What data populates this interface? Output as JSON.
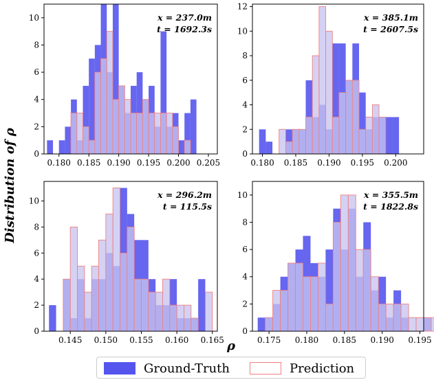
{
  "colors": {
    "ground_truth_fill": "#5555ee",
    "prediction_fill": "#c8c4f0",
    "prediction_edge": "#f08080"
  },
  "y_axis_label": "Distribution of ρ",
  "x_axis_label": "ρ",
  "legend": {
    "ground_truth": "Ground-Truth",
    "prediction": "Prediction"
  },
  "chart_data": [
    {
      "type": "bar",
      "panel": "top-left",
      "annotation_x": "x = 237.0m",
      "annotation_t": "t = 1692.3s",
      "xlim": [
        0.1775,
        0.2065
      ],
      "ylim": [
        0,
        11
      ],
      "xticks": [
        0.18,
        0.185,
        0.19,
        0.195,
        0.2,
        0.205
      ],
      "xtick_labels": [
        "0.180",
        "0.185",
        "0.190",
        "0.195",
        "0.200",
        "0.205"
      ],
      "yticks": [
        0,
        2,
        4,
        6,
        8,
        10
      ],
      "bin_start": 0.178,
      "bin_width": 0.001,
      "series": [
        {
          "name": "Ground-Truth",
          "values": [
            1,
            0,
            1,
            2,
            4,
            1,
            5,
            7,
            8,
            11,
            6,
            11,
            5,
            3,
            5,
            6,
            4,
            5,
            2,
            9,
            2,
            3,
            1,
            3,
            4
          ]
        },
        {
          "name": "Prediction",
          "values": [
            0,
            0,
            0,
            0,
            3,
            3,
            2,
            1,
            6,
            7,
            9,
            4,
            5,
            4,
            3,
            3,
            4,
            3,
            3,
            3,
            3,
            2,
            0,
            1,
            0
          ]
        }
      ],
      "grid": false
    },
    {
      "type": "bar",
      "panel": "top-right",
      "annotation_x": "x = 385.1m",
      "annotation_t": "t = 2607.5s",
      "xlim": [
        0.1785,
        0.2042
      ],
      "ylim": [
        0,
        12.2
      ],
      "xticks": [
        0.18,
        0.185,
        0.19,
        0.195,
        0.2
      ],
      "xtick_labels": [
        "0.180",
        "0.185",
        "0.190",
        "0.195",
        "0.200"
      ],
      "yticks": [
        0,
        2,
        4,
        6,
        8,
        10,
        12
      ],
      "bin_start": 0.1795,
      "bin_width": 0.001,
      "series": [
        {
          "name": "Ground-Truth",
          "values": [
            2,
            1,
            0,
            0,
            2,
            2,
            2,
            6,
            3,
            4,
            2,
            9,
            9,
            6,
            9,
            5,
            2,
            3,
            3,
            3,
            3
          ]
        },
        {
          "name": "Prediction",
          "values": [
            0,
            0,
            0,
            2,
            1,
            2,
            2,
            3,
            8,
            12,
            10,
            3,
            5,
            6,
            6,
            2,
            3,
            4,
            3,
            0,
            0
          ]
        }
      ],
      "grid": false
    },
    {
      "type": "bar",
      "panel": "bottom-left",
      "annotation_x": "x = 296.2m",
      "annotation_t": "t = 115.5s",
      "xlim": [
        0.1413,
        0.1657
      ],
      "ylim": [
        0,
        11.5
      ],
      "xticks": [
        0.145,
        0.15,
        0.155,
        0.16,
        0.165
      ],
      "xtick_labels": [
        "0.145",
        "0.150",
        "0.155",
        "0.160",
        "0.165"
      ],
      "yticks": [
        0,
        2,
        4,
        6,
        8,
        10
      ],
      "bin_start": 0.142,
      "bin_width": 0.001,
      "series": [
        {
          "name": "Ground-Truth",
          "values": [
            2,
            0,
            4,
            1,
            4,
            1,
            4,
            4,
            6,
            5,
            11,
            9,
            7,
            7,
            4,
            2,
            2,
            4,
            1,
            1,
            1,
            4,
            0
          ]
        },
        {
          "name": "Prediction",
          "values": [
            0,
            0,
            4,
            8,
            5,
            3,
            5,
            7,
            9,
            11,
            6,
            8,
            4,
            4,
            3,
            3,
            4,
            2,
            2,
            2,
            1,
            0,
            3
          ]
        }
      ],
      "grid": false
    },
    {
      "type": "bar",
      "panel": "bottom-right",
      "annotation_x": "x = 355.5m",
      "annotation_t": "t = 1822.8s",
      "xlim": [
        0.1728,
        0.1955
      ],
      "ylim": [
        0,
        11
      ],
      "xticks": [
        0.175,
        0.18,
        0.185,
        0.19,
        0.195
      ],
      "xtick_labels": [
        "0.175",
        "0.180",
        "0.185",
        "0.190",
        "0.195"
      ],
      "yticks": [
        0,
        2,
        4,
        6,
        8,
        10
      ],
      "bin_start": 0.1735,
      "bin_width": 0.001,
      "series": [
        {
          "name": "Ground-Truth",
          "values": [
            1,
            1,
            2,
            4,
            5,
            6,
            7,
            5,
            4,
            6,
            9,
            6,
            9,
            4,
            8,
            3,
            4,
            1,
            3,
            1,
            0,
            0,
            1,
            0
          ]
        },
        {
          "name": "Prediction",
          "values": [
            0,
            1,
            3,
            3,
            5,
            5,
            4,
            4,
            5,
            2,
            8,
            10,
            10,
            6,
            6,
            4,
            2,
            2,
            2,
            2,
            1,
            1,
            1,
            1
          ]
        }
      ],
      "grid": false
    }
  ]
}
